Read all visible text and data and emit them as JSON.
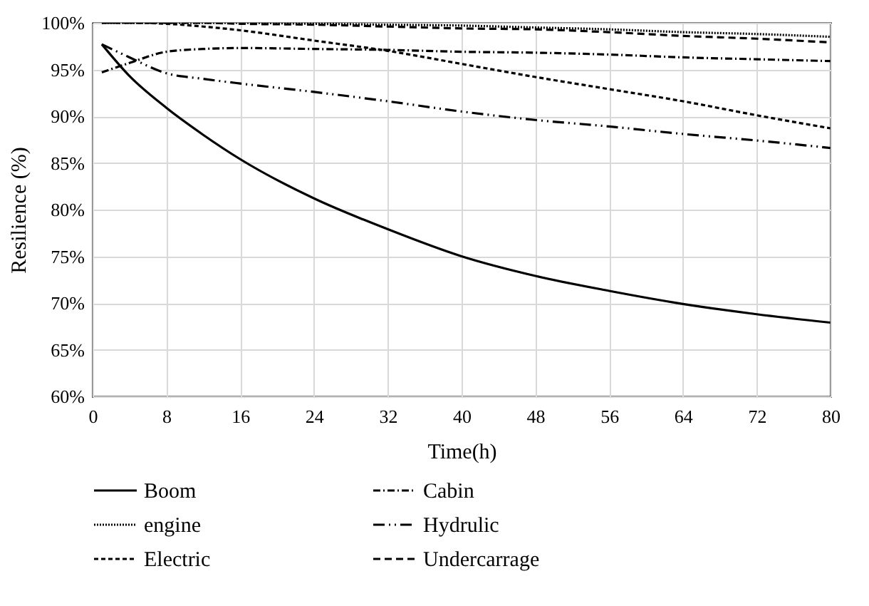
{
  "chart_data": {
    "type": "line",
    "xlabel": "Time(h)",
    "ylabel": "Resilience (%)",
    "xlim": [
      0,
      80
    ],
    "xticks": [
      0,
      8,
      16,
      24,
      32,
      40,
      48,
      56,
      64,
      72,
      80
    ],
    "ylim": [
      60,
      100
    ],
    "yticks": [
      {
        "value": 60,
        "label": "60%"
      },
      {
        "value": 65,
        "label": "65%"
      },
      {
        "value": 70,
        "label": "70%"
      },
      {
        "value": 75,
        "label": "75%"
      },
      {
        "value": 80,
        "label": "80%"
      },
      {
        "value": 85,
        "label": "85%"
      },
      {
        "value": 90,
        "label": "90%"
      },
      {
        "value": 95,
        "label": "95%"
      },
      {
        "value": 100,
        "label": "100%"
      }
    ],
    "grid": true,
    "legend": "bottom",
    "marker": "none",
    "x": [
      1,
      4,
      8,
      12,
      16,
      24,
      32,
      40,
      48,
      56,
      64,
      72,
      80
    ],
    "series": [
      {
        "name": "Boom",
        "color": "#000000",
        "line_style": "solid",
        "values": [
          97.7,
          94.3,
          90.9,
          88,
          85.4,
          81.2,
          77.9,
          75.0,
          72.9,
          71.3,
          69.9,
          68.8,
          67.9
        ]
      },
      {
        "name": "Cabin",
        "color": "#000000",
        "line_style": "dashdot",
        "values": [
          94.7,
          95.7,
          96.9,
          97.2,
          97.3,
          97.2,
          97.1,
          96.9,
          96.8,
          96.6,
          96.3,
          96.1,
          95.9
        ]
      },
      {
        "name": "engine",
        "color": "#000000",
        "line_style": "dotted",
        "values": [
          100,
          100,
          100,
          100,
          100,
          99.9,
          99.8,
          99.7,
          99.5,
          99.3,
          99.0,
          98.8,
          98.5
        ]
      },
      {
        "name": "Hydrulic",
        "color": "#000000",
        "line_style": "dashdotdot",
        "values": [
          97.7,
          96.3,
          94.6,
          94.0,
          93.5,
          92.6,
          91.6,
          90.5,
          89.6,
          88.9,
          88.1,
          87.4,
          86.6
        ]
      },
      {
        "name": "Electric",
        "color": "#000000",
        "line_style": "dashed",
        "values": [
          100,
          100,
          99.9,
          99.6,
          99.2,
          98.1,
          97.0,
          95.6,
          94.2,
          92.9,
          91.6,
          90.1,
          88.7
        ]
      },
      {
        "name": "Undercarrage",
        "color": "#000000",
        "line_style": "longdashed",
        "values": [
          100,
          100,
          100,
          100,
          99.9,
          99.8,
          99.6,
          99.4,
          99.3,
          99.0,
          98.6,
          98.3,
          97.9
        ]
      }
    ]
  }
}
